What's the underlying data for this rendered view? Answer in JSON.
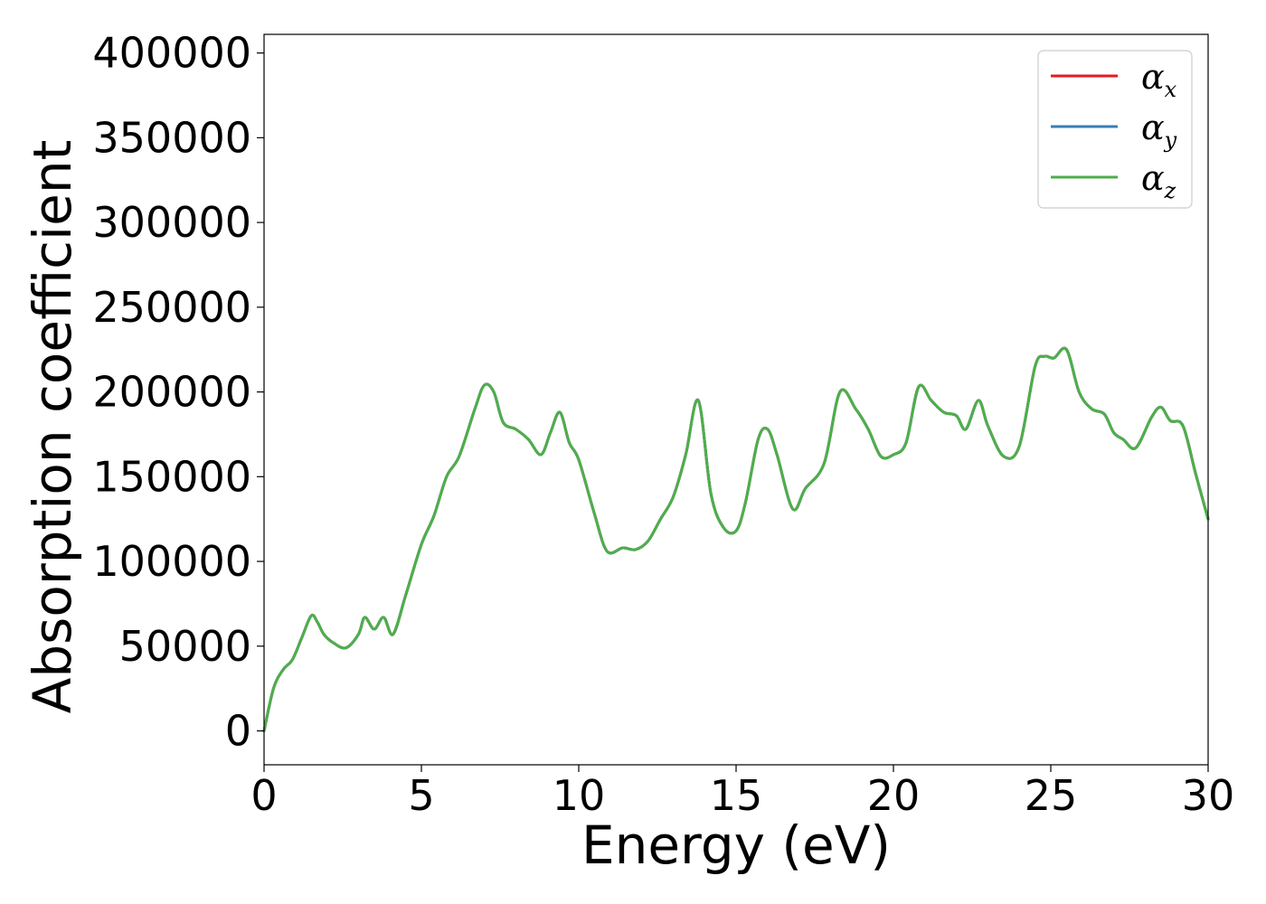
{
  "chart_data": {
    "type": "line",
    "title": "",
    "xlabel": "Energy (eV)",
    "ylabel": "Absorption coefficient",
    "xlim": [
      0,
      30
    ],
    "ylim": [
      -20000,
      411000
    ],
    "xticks": [
      0,
      5,
      10,
      15,
      20,
      25,
      30
    ],
    "yticks": [
      0,
      50000,
      100000,
      150000,
      200000,
      250000,
      300000,
      350000,
      400000
    ],
    "xtick_labels": [
      "0",
      "5",
      "10",
      "15",
      "20",
      "25",
      "30"
    ],
    "ytick_labels": [
      "0",
      "50000",
      "100000",
      "150000",
      "200000",
      "250000",
      "300000",
      "350000",
      "400000"
    ],
    "grid": false,
    "legend_position": "top-right",
    "x": [
      0,
      0.3,
      0.6,
      0.9,
      1.2,
      1.5,
      1.7,
      1.9,
      2.2,
      2.6,
      3.0,
      3.2,
      3.5,
      3.8,
      4.1,
      4.5,
      5.0,
      5.4,
      5.8,
      6.2,
      6.7,
      7.0,
      7.3,
      7.6,
      8.0,
      8.4,
      8.8,
      9.1,
      9.4,
      9.7,
      10.0,
      10.5,
      10.9,
      11.4,
      11.8,
      12.2,
      12.6,
      13.0,
      13.4,
      13.8,
      14.2,
      14.6,
      15.0,
      15.3,
      15.7,
      16.0,
      16.3,
      16.8,
      17.2,
      17.8,
      18.3,
      18.8,
      19.2,
      19.6,
      20.0,
      20.4,
      20.8,
      21.2,
      21.6,
      22.0,
      22.3,
      22.7,
      23.0,
      23.5,
      24.0,
      24.5,
      24.8,
      25.1,
      25.5,
      25.9,
      26.3,
      26.7,
      27.0,
      27.3,
      27.7,
      28.2,
      28.5,
      28.8,
      29.2,
      29.6,
      30.0
    ],
    "series": [
      {
        "name": "α_x",
        "label_base": "α",
        "label_sub": "x",
        "color": "#e41a1c",
        "values": [
          0,
          25000,
          36000,
          42000,
          55000,
          68000,
          64000,
          57000,
          52000,
          49000,
          57000,
          67000,
          60000,
          67000,
          57000,
          80000,
          110000,
          127000,
          150000,
          162000,
          190000,
          204000,
          200000,
          182000,
          178000,
          172000,
          163000,
          176000,
          188000,
          170000,
          160000,
          128000,
          106000,
          108000,
          107000,
          112000,
          125000,
          138000,
          163000,
          195000,
          140000,
          120000,
          118000,
          135000,
          172000,
          178000,
          163000,
          131000,
          143000,
          158000,
          200000,
          190000,
          178000,
          162000,
          163000,
          170000,
          203000,
          195000,
          188000,
          186000,
          178000,
          195000,
          180000,
          162000,
          168000,
          215000,
          221000,
          220000,
          225000,
          200000,
          190000,
          187000,
          176000,
          172000,
          167000,
          185000,
          191000,
          183000,
          180000,
          152000,
          125000
        ]
      },
      {
        "name": "α_y",
        "label_base": "α",
        "label_sub": "y",
        "color": "#377eb8",
        "values": [
          0,
          25000,
          36000,
          42000,
          55000,
          68000,
          64000,
          57000,
          52000,
          49000,
          57000,
          67000,
          60000,
          67000,
          57000,
          80000,
          110000,
          127000,
          150000,
          162000,
          190000,
          204000,
          200000,
          182000,
          178000,
          172000,
          163000,
          176000,
          188000,
          170000,
          160000,
          128000,
          106000,
          108000,
          107000,
          112000,
          125000,
          138000,
          163000,
          195000,
          140000,
          120000,
          118000,
          135000,
          172000,
          178000,
          163000,
          131000,
          143000,
          158000,
          200000,
          190000,
          178000,
          162000,
          163000,
          170000,
          203000,
          195000,
          188000,
          186000,
          178000,
          195000,
          180000,
          162000,
          168000,
          215000,
          221000,
          220000,
          225000,
          200000,
          190000,
          187000,
          176000,
          172000,
          167000,
          185000,
          191000,
          183000,
          180000,
          152000,
          125000
        ]
      },
      {
        "name": "α_z",
        "label_base": "α",
        "label_sub": "z",
        "color": "#4daf4a",
        "values": [
          0,
          25000,
          36000,
          42000,
          55000,
          68000,
          64000,
          57000,
          52000,
          49000,
          57000,
          67000,
          60000,
          67000,
          57000,
          80000,
          110000,
          127000,
          150000,
          162000,
          190000,
          204000,
          200000,
          182000,
          178000,
          172000,
          163000,
          176000,
          188000,
          170000,
          160000,
          128000,
          106000,
          108000,
          107000,
          112000,
          125000,
          138000,
          163000,
          195000,
          140000,
          120000,
          118000,
          135000,
          172000,
          178000,
          163000,
          131000,
          143000,
          158000,
          200000,
          190000,
          178000,
          162000,
          163000,
          170000,
          203000,
          195000,
          188000,
          186000,
          178000,
          195000,
          180000,
          162000,
          168000,
          215000,
          221000,
          220000,
          225000,
          200000,
          190000,
          187000,
          176000,
          172000,
          167000,
          185000,
          191000,
          183000,
          180000,
          152000,
          125000
        ]
      }
    ]
  }
}
